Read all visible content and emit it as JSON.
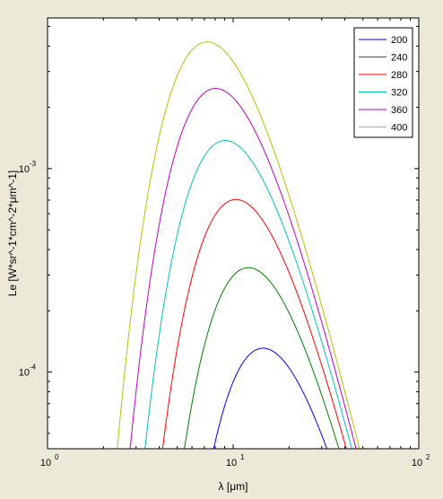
{
  "chart_data": {
    "type": "line",
    "xlabel": "λ [μm]",
    "ylabel": "Le [W*sr^-1*cm^-2*μm^-1]",
    "x_scale": "log",
    "y_scale": "log",
    "xlim": [
      1,
      100
    ],
    "ylim": [
      4.2e-05,
      0.0055
    ],
    "x_ticks": [
      {
        "value": 1,
        "base": "10",
        "exp": "0"
      },
      {
        "value": 10,
        "base": "10",
        "exp": "1"
      },
      {
        "value": 100,
        "base": "10",
        "exp": "2"
      }
    ],
    "y_ticks": [
      {
        "value": 0.0001,
        "base": "10",
        "exp": "-4"
      },
      {
        "value": 0.001,
        "base": "10",
        "exp": "-3"
      }
    ],
    "grid": false,
    "legend_position": "top-right",
    "series": [
      {
        "name": "200",
        "color": "#0000ff",
        "temperature": 200
      },
      {
        "name": "240",
        "color": "#008000",
        "temperature": 240
      },
      {
        "name": "280",
        "color": "#ff0000",
        "temperature": 280
      },
      {
        "name": "320",
        "color": "#00bfbf",
        "temperature": 320
      },
      {
        "name": "360",
        "color": "#bf00bf",
        "temperature": 360
      },
      {
        "name": "400",
        "color": "#bfbf00",
        "temperature": 400
      }
    ]
  }
}
